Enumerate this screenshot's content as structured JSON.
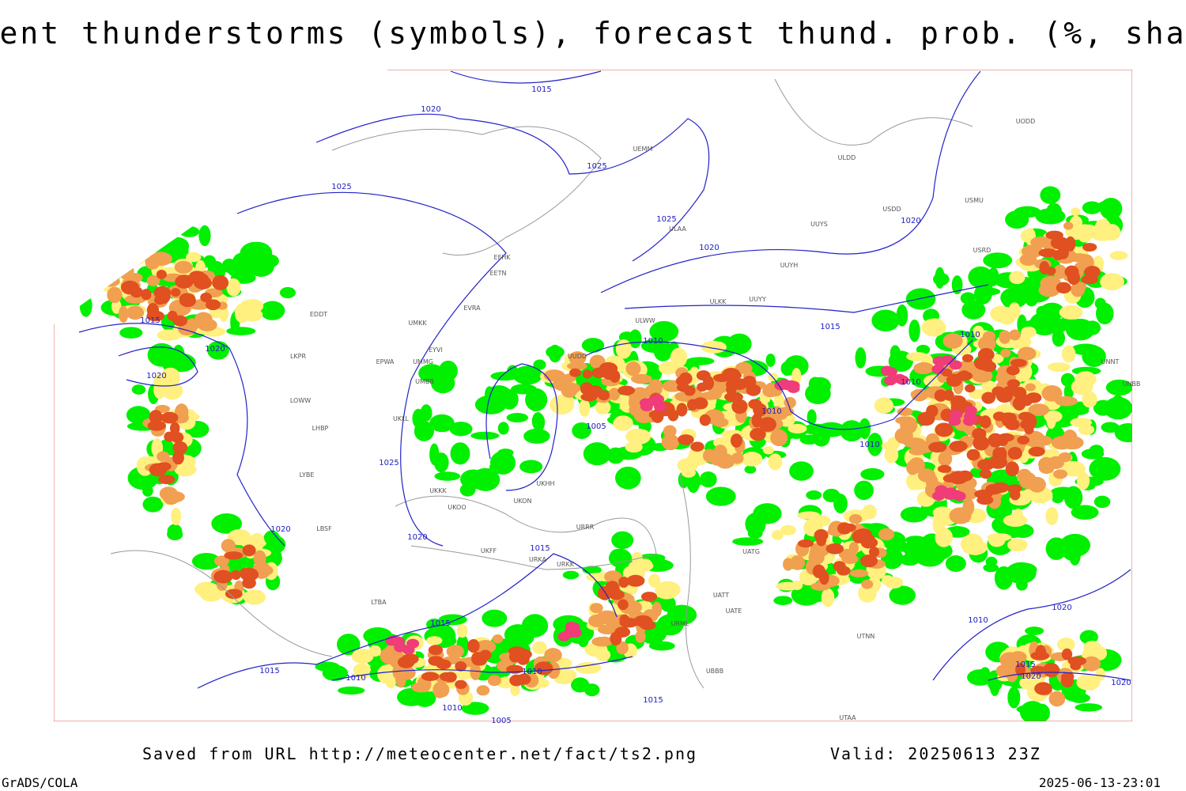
{
  "header": {
    "title": "Current thunderstorms (symbols), forecast thund. prob. (%, shaded)"
  },
  "map": {
    "isobar_labels": [
      "1015",
      "1020",
      "1025",
      "1025",
      "1025",
      "1020",
      "1020",
      "1015",
      "1020",
      "1020",
      "1010",
      "1015",
      "1010",
      "1010",
      "1010",
      "1005",
      "1010",
      "1025",
      "1020",
      "1020",
      "1015",
      "1015",
      "1010",
      "1020",
      "1010",
      "1010",
      "1015",
      "1015",
      "1020",
      "1020",
      "1010",
      "1015",
      "1005"
    ],
    "stations": [
      "UEMM",
      "ULDD",
      "USMU",
      "USDD",
      "UUYS",
      "ULAA",
      "UUYH",
      "EFHK",
      "EETN",
      "USRD",
      "ULKK",
      "UUYY",
      "ULWW",
      "EDDT",
      "UMKK",
      "EVRA",
      "EYVI",
      "EPWA",
      "UMMG",
      "UMBB",
      "LKPR",
      "LOWW",
      "LHBP",
      "UKLL",
      "LYBE",
      "UKKK",
      "UKOO",
      "UKHH",
      "UKON",
      "URRR",
      "UKFF",
      "URKA",
      "URKK",
      "LBSF",
      "LTBA",
      "UUDD",
      "UNNT",
      "UNBB",
      "UATG",
      "UATT",
      "UATE",
      "URML",
      "UTNN",
      "UBBB",
      "UTAA",
      "UODD"
    ]
  },
  "footer": {
    "source": "Saved from URL http://meteocenter.net/fact/ts2.png",
    "valid": "Valid: 20250613 23Z",
    "software": "GrADS/COLA",
    "timestamp": "2025-06-13-23:01"
  }
}
